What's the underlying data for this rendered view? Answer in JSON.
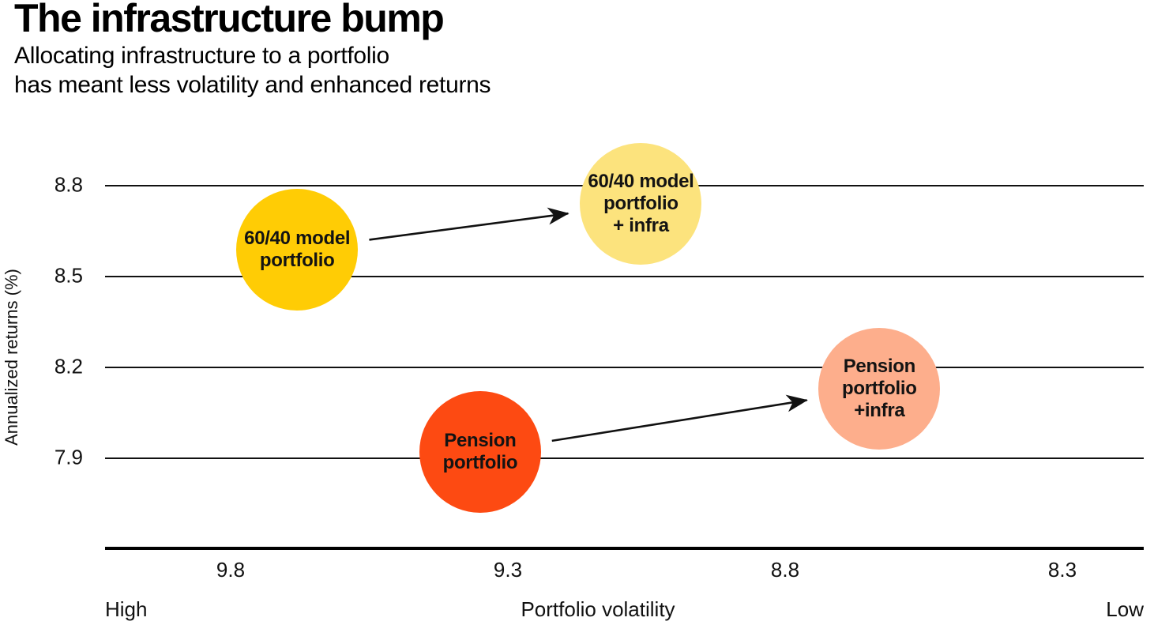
{
  "chart_data": {
    "type": "scatter",
    "title": "The infrastructure bump",
    "subtitle_lines": [
      "Allocating infrastructure to a portfolio",
      "has meant less volatility and enhanced returns"
    ],
    "ylabel": "Annualized returns (%)",
    "xlabel": "Portfolio volatility",
    "x_axis": {
      "ticks": [
        "9.8",
        "9.3",
        "8.8",
        "8.3"
      ],
      "tick_values": [
        9.8,
        9.3,
        8.8,
        8.3
      ],
      "direction_labels": {
        "left": "High",
        "right": "Low"
      },
      "reversed": true,
      "range": [
        10.05,
        8.05
      ]
    },
    "y_axis": {
      "ticks": [
        "8.8",
        "8.5",
        "8.2",
        "7.9"
      ],
      "tick_values": [
        8.8,
        8.5,
        8.2,
        7.9
      ],
      "range": [
        7.6,
        9.0
      ],
      "grid": true
    },
    "points": [
      {
        "id": "model-6040",
        "label_lines": [
          "60/40 model",
          "portfolio"
        ],
        "volatility": 9.68,
        "return_pct": 8.59,
        "color": "#FFCC05"
      },
      {
        "id": "model-6040-infra",
        "label_lines": [
          "60/40 model",
          "portfolio",
          "+ infra"
        ],
        "volatility": 9.06,
        "return_pct": 8.74,
        "color": "#FCE37D"
      },
      {
        "id": "pension",
        "label_lines": [
          "Pension",
          "portfolio"
        ],
        "volatility": 9.35,
        "return_pct": 7.92,
        "color": "#FD4A12"
      },
      {
        "id": "pension-infra",
        "label_lines": [
          "Pension",
          "portfolio",
          "+infra"
        ],
        "volatility": 8.63,
        "return_pct": 8.13,
        "color": "#FDAE8C"
      }
    ],
    "arrows": [
      {
        "from": "model-6040",
        "to": "model-6040-infra"
      },
      {
        "from": "pension",
        "to": "pension-infra"
      }
    ],
    "arrow_color": "#111111"
  }
}
